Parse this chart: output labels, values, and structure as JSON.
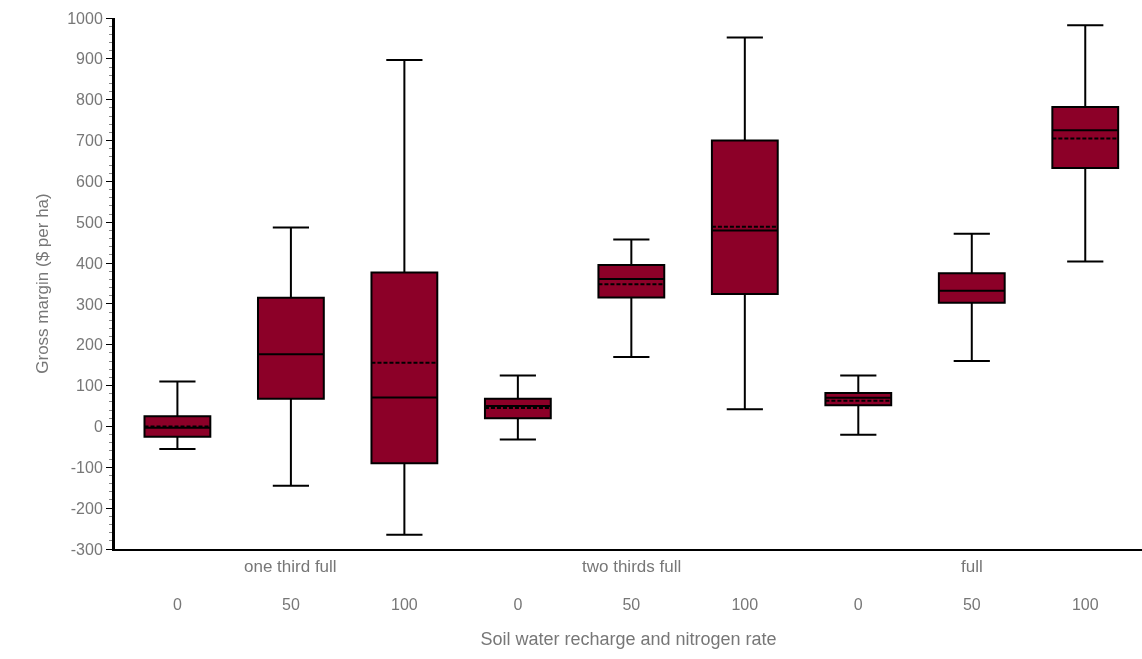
{
  "chart_data": {
    "type": "box",
    "xlabel": "Soil water recharge and nitrogen rate",
    "ylabel": "Gross margin ($ per ha)",
    "categories": [
      "0",
      "50",
      "100",
      "0",
      "50",
      "100",
      "0",
      "50",
      "100"
    ],
    "annotations": [
      "one third full",
      "two thirds full",
      "full"
    ],
    "color": "#8c0028",
    "boxes": [
      {
        "low": -55,
        "q1": -25,
        "median": -3,
        "q3": 25,
        "high": 110,
        "mean": 0
      },
      {
        "low": -145,
        "q1": 68,
        "median": 177,
        "q3": 315,
        "high": 487
      },
      {
        "low": -265,
        "q1": -90,
        "median": 71,
        "q3": 377,
        "high": 897,
        "mean": 156
      },
      {
        "low": -32,
        "q1": 20,
        "median": 50,
        "q3": 68,
        "high": 125,
        "mean": 45
      },
      {
        "low": 170,
        "q1": 316,
        "median": 361,
        "q3": 395,
        "high": 458,
        "mean": 348
      },
      {
        "low": 42,
        "q1": 324,
        "median": 480,
        "q3": 700,
        "high": 952,
        "mean": 489
      },
      {
        "low": -20,
        "q1": 52,
        "median": 70,
        "q3": 82,
        "high": 125,
        "mean": 63
      },
      {
        "low": 160,
        "q1": 303,
        "median": 332,
        "q3": 375,
        "high": 472
      },
      {
        "low": 404,
        "q1": 633,
        "median": 725,
        "q3": 782,
        "high": 982,
        "mean": 705
      }
    ],
    "ylim": [
      -300,
      1000
    ],
    "yticks": [
      -300,
      -200,
      -100,
      0,
      100,
      200,
      300,
      400,
      500,
      600,
      700,
      800,
      900,
      1000
    ],
    "tick_labels": true
  }
}
